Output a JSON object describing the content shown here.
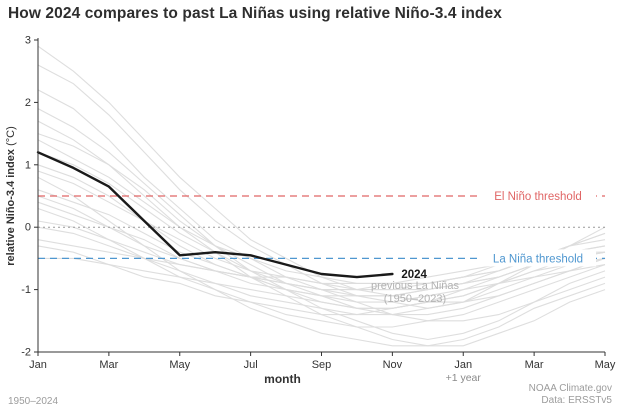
{
  "title": "How 2024 compares to past La Niñas using relative Niño-3.4 index",
  "footer": {
    "left": "1950–2024",
    "right_line1": "NOAA Climate.gov",
    "right_line2": "Data: ERSSTv5"
  },
  "colors": {
    "title": "#2e2e2e",
    "axis": "#333333",
    "tick_label": "#333333",
    "gray_series": "#dcdcdc",
    "line_2024": "#1a1a1a",
    "el_nino": "#e06666",
    "la_nina": "#4f97d0",
    "zero_line": "#999999",
    "annotation_gray": "#b3b3b3",
    "footer": "#9c9c9c"
  },
  "chart_data": {
    "type": "line",
    "title": "How 2024 compares to past La Niñas using relative Niño-3.4 index",
    "xlabel": "month",
    "ylabel_bold": "relative Niño-3.4 index",
    "ylabel_units": " (°C)",
    "ylim": [
      -2,
      3
    ],
    "yticks": [
      3,
      2,
      1,
      0,
      -1,
      -2
    ],
    "x_months_total": 17,
    "x_tick_indices": [
      0,
      2,
      4,
      6,
      8,
      10,
      12,
      14,
      16
    ],
    "x_tick_labels": [
      "Jan",
      "Mar",
      "May",
      "Jul",
      "Sep",
      "Nov",
      "Jan",
      "Mar",
      "May"
    ],
    "x_extra_label": "+1 year",
    "x_extra_label_index": 12,
    "grid": false,
    "zero_line_value": 0,
    "thresholds": [
      {
        "name": "el-nino-threshold",
        "label": "El Niño threshold",
        "value": 0.5,
        "color": "#e06666"
      },
      {
        "name": "la-nina-threshold",
        "label": "La Niña threshold",
        "value": -0.5,
        "color": "#4f97d0"
      }
    ],
    "series_2024": {
      "name": "2024",
      "label": "2024",
      "values": [
        1.2,
        0.95,
        0.65,
        0.1,
        -0.45,
        -0.4,
        -0.45,
        -0.6,
        -0.75,
        -0.8,
        -0.75
      ]
    },
    "previous_la_ninas": {
      "label_line1": "previous La Niñas",
      "label_line2": "(1950–2023)",
      "series": [
        [
          2.6,
          2.3,
          1.8,
          1.2,
          0.6,
          0.1,
          -0.3,
          -0.6,
          -0.9,
          -1.1,
          -1.2,
          -1.3,
          -1.2,
          -0.9,
          -0.6,
          -0.3,
          -0.1
        ],
        [
          2.2,
          1.9,
          1.4,
          0.8,
          0.3,
          -0.2,
          -0.5,
          -0.8,
          -1.0,
          -1.2,
          -1.4,
          -1.5,
          -1.5,
          -1.4,
          -1.2,
          -0.9,
          -0.7
        ],
        [
          1.9,
          1.6,
          1.2,
          0.7,
          0.2,
          -0.3,
          -0.7,
          -1.0,
          -1.3,
          -1.5,
          -1.7,
          -1.8,
          -1.7,
          -1.5,
          -1.2,
          -1.0,
          -0.8
        ],
        [
          1.5,
          1.3,
          1.0,
          0.6,
          0.1,
          -0.3,
          -0.6,
          -0.9,
          -1.1,
          -1.3,
          -1.4,
          -1.4,
          -1.3,
          -1.1,
          -0.9,
          -0.7,
          -0.5
        ],
        [
          1.2,
          1.0,
          0.7,
          0.3,
          -0.1,
          -0.4,
          -0.7,
          -0.9,
          -1.0,
          -1.1,
          -1.1,
          -1.0,
          -0.9,
          -0.7,
          -0.5,
          -0.3,
          -0.1
        ],
        [
          0.9,
          0.7,
          0.4,
          0.1,
          -0.3,
          -0.6,
          -0.8,
          -1.0,
          -1.2,
          -1.3,
          -1.3,
          -1.2,
          -1.0,
          -0.8,
          -0.6,
          -0.4,
          -0.3
        ],
        [
          0.6,
          0.4,
          0.2,
          -0.1,
          -0.4,
          -0.6,
          -0.8,
          -0.9,
          -1.0,
          -1.0,
          -1.0,
          -0.9,
          -0.8,
          -0.6,
          -0.5,
          -0.3,
          -0.2
        ],
        [
          0.4,
          0.2,
          0.0,
          -0.3,
          -0.5,
          -0.7,
          -0.9,
          -1.0,
          -1.1,
          -1.2,
          -1.2,
          -1.1,
          -1.0,
          -0.9,
          -0.7,
          -0.5,
          -0.4
        ],
        [
          0.1,
          0.0,
          -0.2,
          -0.4,
          -0.6,
          -0.7,
          -0.8,
          -0.9,
          -1.0,
          -1.0,
          -0.9,
          -0.9,
          -0.8,
          -0.7,
          -0.5,
          -0.4,
          -0.3
        ],
        [
          -0.2,
          -0.3,
          -0.4,
          -0.5,
          -0.6,
          -0.7,
          -0.8,
          -0.8,
          -0.9,
          -0.9,
          -0.9,
          -0.8,
          -0.7,
          -0.6,
          -0.5,
          -0.4,
          -0.4
        ],
        [
          -0.5,
          -0.5,
          -0.6,
          -0.7,
          -0.8,
          -0.9,
          -1.0,
          -1.1,
          -1.2,
          -1.3,
          -1.3,
          -1.2,
          -1.1,
          -0.9,
          -0.8,
          -0.6,
          -0.5
        ],
        [
          0.8,
          0.5,
          0.1,
          -0.3,
          -0.7,
          -1.0,
          -1.3,
          -1.5,
          -1.7,
          -1.8,
          -1.9,
          -1.9,
          -1.8,
          -1.6,
          -1.3,
          -1.1,
          -0.9
        ],
        [
          1.0,
          0.8,
          0.5,
          0.1,
          -0.2,
          -0.5,
          -0.7,
          -0.8,
          -0.9,
          -1.0,
          -1.0,
          -1.0,
          -0.9,
          -0.8,
          -0.6,
          -0.5,
          -0.4
        ],
        [
          0.3,
          0.1,
          -0.2,
          -0.5,
          -0.8,
          -1.0,
          -1.2,
          -1.4,
          -1.5,
          -1.6,
          -1.6,
          -1.5,
          -1.4,
          -1.2,
          -1.0,
          -0.8,
          -0.6
        ],
        [
          1.7,
          1.4,
          1.0,
          0.5,
          0.0,
          -0.4,
          -0.8,
          -1.1,
          -1.4,
          -1.6,
          -1.8,
          -1.9,
          -1.9,
          -1.7,
          -1.5,
          -1.2,
          -1.0
        ],
        [
          0.0,
          -0.1,
          -0.3,
          -0.5,
          -0.7,
          -0.9,
          -1.1,
          -1.2,
          -1.3,
          -1.4,
          -1.4,
          -1.3,
          -1.2,
          -1.0,
          -0.8,
          -0.7,
          -0.6
        ],
        [
          2.9,
          2.5,
          2.0,
          1.4,
          0.8,
          0.3,
          -0.2,
          -0.5,
          -0.8,
          -1.0,
          -1.1,
          -1.2,
          -1.2,
          -1.1,
          -0.9,
          -0.7,
          -0.5
        ],
        [
          -0.3,
          -0.4,
          -0.6,
          -0.8,
          -0.9,
          -1.1,
          -1.2,
          -1.3,
          -1.4,
          -1.4,
          -1.3,
          -1.2,
          -1.1,
          -0.9,
          -0.7,
          -0.6,
          -0.5
        ],
        [
          0.5,
          0.3,
          0.0,
          -0.2,
          -0.5,
          -0.7,
          -0.8,
          -1.0,
          -1.1,
          -1.1,
          -1.1,
          -1.0,
          -0.9,
          -0.8,
          -0.6,
          -0.5,
          -0.4
        ],
        [
          1.4,
          1.1,
          0.8,
          0.4,
          0.0,
          -0.3,
          -0.5,
          -0.7,
          -0.8,
          -0.9,
          -0.9,
          -0.9,
          -0.8,
          -0.7,
          -0.5,
          -0.3,
          0.0
        ]
      ]
    }
  }
}
